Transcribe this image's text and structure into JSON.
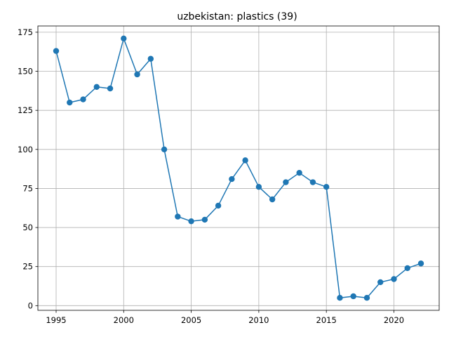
{
  "chart_data": {
    "type": "line",
    "title": "uzbekistan: plastics (39)",
    "xlabel": "",
    "ylabel": "",
    "x": [
      1995,
      1996,
      1997,
      1998,
      1999,
      2000,
      2001,
      2002,
      2003,
      2004,
      2005,
      2006,
      2007,
      2008,
      2009,
      2010,
      2011,
      2012,
      2013,
      2014,
      2015,
      2016,
      2017,
      2018,
      2019,
      2020,
      2021,
      2022
    ],
    "series": [
      {
        "values": [
          163,
          130,
          132,
          140,
          139,
          171,
          148,
          158,
          100,
          57,
          54,
          55,
          64,
          81,
          93,
          76,
          68,
          79,
          85,
          79,
          76,
          5,
          6,
          5,
          15,
          17,
          24,
          27
        ],
        "color": "#1f77b4"
      }
    ],
    "xlim": [
      1993.65,
      2023.35
    ],
    "ylim": [
      -3,
      179
    ],
    "xticks": [
      1995,
      2000,
      2005,
      2010,
      2015,
      2020
    ],
    "yticks": [
      0,
      25,
      50,
      75,
      100,
      125,
      150,
      175
    ],
    "grid": true,
    "legend": "none"
  }
}
